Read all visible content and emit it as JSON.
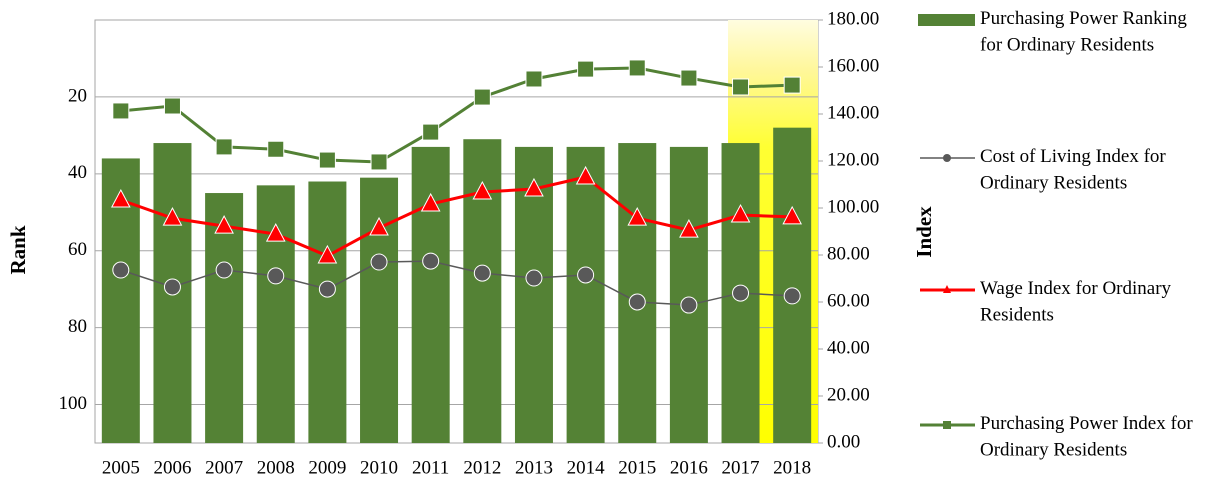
{
  "chart_data": {
    "type": "bar_line",
    "categories": [
      "2005",
      "2006",
      "2007",
      "2008",
      "2009",
      "2010",
      "2011",
      "2012",
      "2013",
      "2014",
      "2015",
      "2016",
      "2017",
      "2018"
    ],
    "ylabel": "Rank",
    "y2label": "Index",
    "ylim": [
      110,
      0
    ],
    "yticks": [
      20,
      40,
      60,
      80,
      100
    ],
    "y2lim": [
      0,
      180
    ],
    "y2ticks": [
      {
        "value": 0,
        "label": "0.00"
      },
      {
        "value": 20,
        "label": "20.00"
      },
      {
        "value": 40,
        "label": "40.00"
      },
      {
        "value": 60,
        "label": "60.00"
      },
      {
        "value": 80,
        "label": "80.00"
      },
      {
        "value": 100,
        "label": "100.00"
      },
      {
        "value": 120,
        "label": "120.00"
      },
      {
        "value": 140,
        "label": "140.00"
      },
      {
        "value": 160,
        "label": "160.00"
      },
      {
        "value": 180,
        "label": "180.00"
      }
    ],
    "grid": true,
    "series": [
      {
        "name": "Purchasing Power Ranking for Ordinary Residents",
        "type": "bar",
        "color": "#548235",
        "axis": "y",
        "values": [
          36,
          32,
          45,
          43,
          42,
          41,
          33,
          31,
          33,
          33,
          32,
          33,
          32,
          28
        ]
      },
      {
        "name": "Cost of Living Index for Ordinary Residents",
        "type": "line",
        "marker": "circle",
        "color": "#595959",
        "axis": "y2",
        "values": [
          73.6,
          66.4,
          73.6,
          71.1,
          65.5,
          77.0,
          77.4,
          72.3,
          70.2,
          71.5,
          60.0,
          58.7,
          63.8,
          62.6
        ]
      },
      {
        "name": "Wage Index for Ordinary Residents",
        "type": "line",
        "marker": "triangle",
        "color": "#ff0000",
        "axis": "y2",
        "values": [
          103.4,
          95.7,
          92.3,
          88.9,
          79.6,
          91.5,
          101.7,
          106.8,
          108.1,
          113.2,
          95.7,
          90.6,
          97.0,
          96.2
        ]
      },
      {
        "name": "Purchasing Power Index for Ordinary Residents",
        "type": "line",
        "marker": "square",
        "color": "#538135",
        "axis": "y2",
        "values": [
          141.3,
          143.4,
          126.0,
          125.0,
          120.4,
          119.6,
          132.3,
          147.2,
          154.9,
          159.1,
          159.6,
          155.3,
          151.5,
          152.3
        ]
      }
    ]
  }
}
